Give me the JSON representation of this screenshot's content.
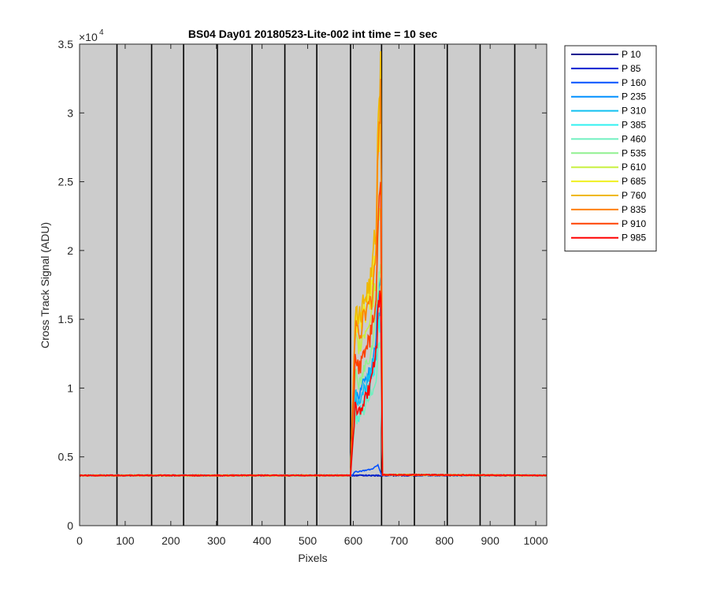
{
  "chart_data": {
    "type": "line",
    "title": "BS04 Day01 20180523-Lite-002 int time = 10 sec",
    "xlabel": "Pixels",
    "ylabel": "Cross Track Signal (ADU)",
    "y_exponent_label": "×10",
    "y_exponent": "4",
    "xlim": [
      0,
      1024
    ],
    "ylim": [
      0,
      35000
    ],
    "x_ticks": [
      0,
      100,
      200,
      300,
      400,
      500,
      600,
      700,
      800,
      900,
      1000
    ],
    "y_ticks": [
      0,
      5000,
      10000,
      15000,
      20000,
      25000,
      30000,
      35000
    ],
    "y_tick_labels": [
      "0",
      "0.5",
      "1",
      "1.5",
      "2",
      "2.5",
      "3",
      "3.5"
    ],
    "x_tick_labels": [
      "0",
      "100",
      "200",
      "300",
      "400",
      "500",
      "600",
      "700",
      "800",
      "900",
      "1000"
    ],
    "background_color": "#cccccc",
    "legend_position": "outside-right-top",
    "column_boundaries": [
      0,
      82,
      158,
      228,
      302,
      378,
      450,
      520,
      594,
      662,
      734,
      806,
      878,
      954,
      1024
    ],
    "series": [
      {
        "name": "P 10",
        "color": "#00008f",
        "baseline": 3650,
        "x": [
          0,
          594,
          662,
          1024
        ],
        "y": [
          3650,
          3650,
          3650,
          3650
        ]
      },
      {
        "name": "P 85",
        "color": "#0020d0",
        "baseline": 3650,
        "x": [
          0,
          594,
          662,
          1024
        ],
        "y": [
          3650,
          3650,
          3650,
          3650
        ]
      },
      {
        "name": "P 160",
        "color": "#0050ff",
        "baseline": 3650,
        "x": [
          0,
          596,
          604,
          640,
          654,
          662,
          1024
        ],
        "y": [
          3650,
          3650,
          3900,
          4100,
          4400,
          3700,
          3650
        ]
      },
      {
        "name": "P 235",
        "color": "#0090ff",
        "baseline": 3650,
        "x": [
          0,
          594,
          604,
          612,
          625,
          640,
          650,
          655,
          660,
          664,
          1024
        ],
        "y": [
          3650,
          3650,
          9300,
          9500,
          10300,
          11300,
          13500,
          17500,
          18000,
          3700,
          3650
        ]
      },
      {
        "name": "P 310",
        "color": "#10c0f0",
        "baseline": 3650,
        "x": [
          0,
          594,
          604,
          612,
          625,
          640,
          650,
          655,
          660,
          664,
          1024
        ],
        "y": [
          3650,
          3650,
          9500,
          9200,
          10000,
          11000,
          12500,
          15500,
          16000,
          3700,
          3650
        ]
      },
      {
        "name": "P 385",
        "color": "#30f0f0",
        "baseline": 3650,
        "x": [
          0,
          594,
          604,
          612,
          625,
          640,
          650,
          655,
          660,
          664,
          1024
        ],
        "y": [
          3650,
          3650,
          8500,
          8000,
          9000,
          10500,
          12000,
          14000,
          14500,
          3700,
          3650
        ]
      },
      {
        "name": "P 460",
        "color": "#70f0c0",
        "baseline": 3650,
        "x": [
          0,
          594,
          604,
          612,
          625,
          640,
          650,
          655,
          660,
          664,
          1024
        ],
        "y": [
          3650,
          3650,
          8000,
          7500,
          8500,
          9500,
          11000,
          13000,
          13500,
          3700,
          3650
        ]
      },
      {
        "name": "P 535",
        "color": "#90f090",
        "baseline": 3650,
        "x": [
          0,
          594,
          604,
          612,
          625,
          640,
          650,
          655,
          660,
          664,
          1024
        ],
        "y": [
          3650,
          3650,
          11000,
          10000,
          11500,
          13000,
          15500,
          18000,
          19000,
          3700,
          3650
        ]
      },
      {
        "name": "P 610",
        "color": "#c8f040",
        "baseline": 3650,
        "x": [
          0,
          594,
          604,
          612,
          625,
          640,
          650,
          655,
          660,
          664,
          1024
        ],
        "y": [
          3650,
          3650,
          13500,
          13000,
          14000,
          15500,
          18000,
          22000,
          23000,
          3700,
          3650
        ]
      },
      {
        "name": "P 685",
        "color": "#f0f020",
        "baseline": 3650,
        "x": [
          0,
          594,
          604,
          612,
          625,
          640,
          650,
          655,
          660,
          664,
          1024
        ],
        "y": [
          3650,
          3650,
          15000,
          14500,
          15500,
          17000,
          20000,
          27000,
          31000,
          3700,
          3650
        ]
      },
      {
        "name": "P 760",
        "color": "#f0b800",
        "baseline": 3650,
        "x": [
          0,
          594,
          604,
          612,
          625,
          640,
          650,
          655,
          660,
          664,
          1024
        ],
        "y": [
          3650,
          3650,
          15500,
          15000,
          16500,
          18000,
          22000,
          30000,
          34500,
          3700,
          3650
        ]
      },
      {
        "name": "P 835",
        "color": "#ff8000",
        "baseline": 3650,
        "x": [
          0,
          594,
          604,
          612,
          625,
          640,
          650,
          655,
          660,
          664,
          1024
        ],
        "y": [
          3650,
          3650,
          14500,
          14000,
          15000,
          16500,
          20000,
          28000,
          32500,
          3700,
          3650
        ]
      },
      {
        "name": "P 910",
        "color": "#ff4000",
        "baseline": 3650,
        "x": [
          0,
          594,
          604,
          612,
          625,
          640,
          650,
          655,
          660,
          664,
          1024
        ],
        "y": [
          3650,
          3650,
          12000,
          11500,
          12500,
          14000,
          16500,
          22000,
          25000,
          3700,
          3650
        ]
      },
      {
        "name": "P 985",
        "color": "#ff0000",
        "baseline": 3650,
        "x": [
          0,
          594,
          604,
          612,
          625,
          640,
          650,
          655,
          660,
          664,
          1024
        ],
        "y": [
          3650,
          3650,
          8500,
          8200,
          9000,
          10500,
          12500,
          15500,
          16500,
          3700,
          3650
        ]
      }
    ]
  }
}
